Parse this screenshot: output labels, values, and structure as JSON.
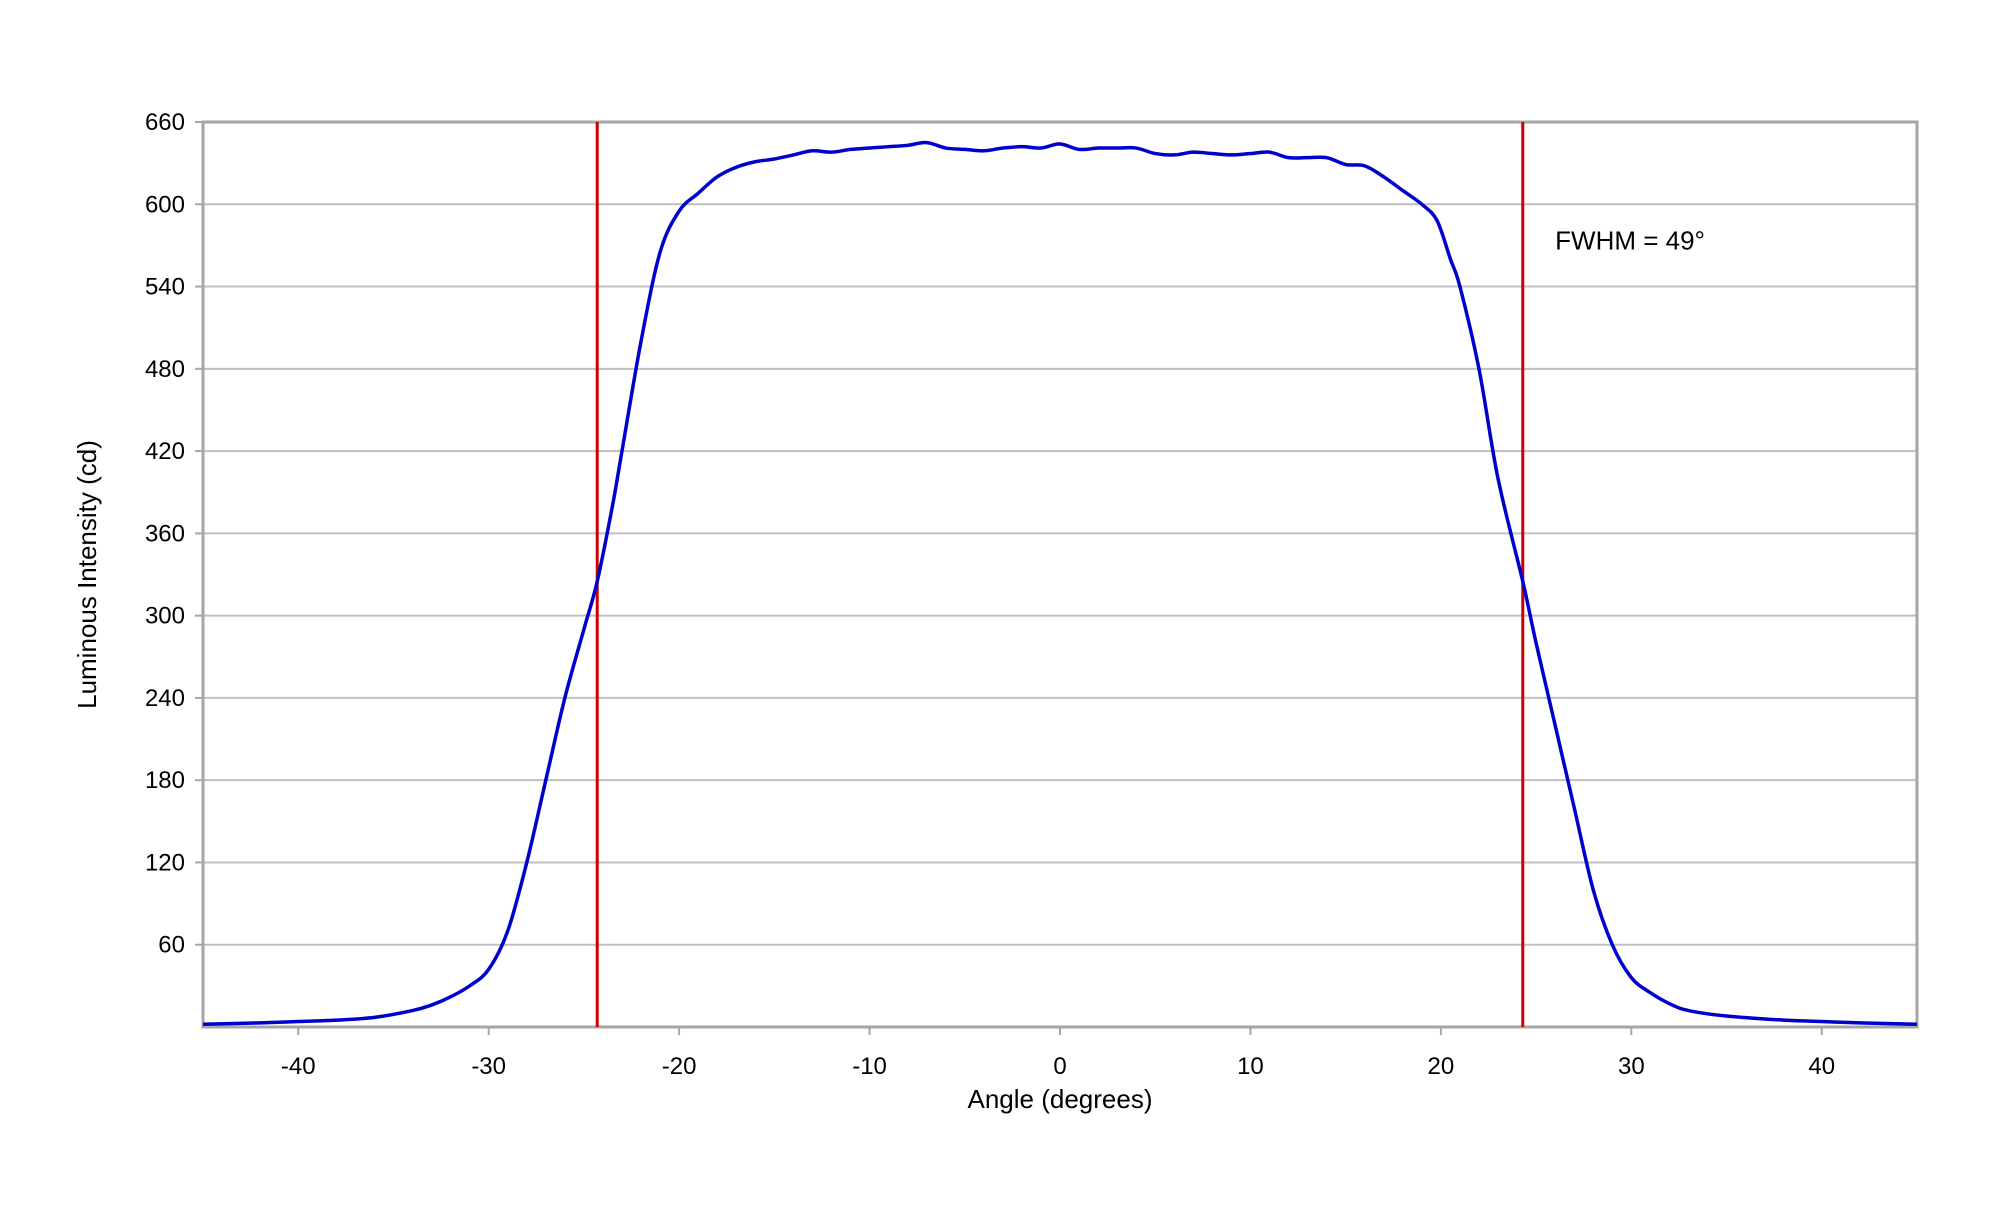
{
  "chart_data": {
    "type": "line",
    "title": "",
    "xlabel": "Angle (degrees)",
    "ylabel": "Luminous Intensity (cd)",
    "xlim": [
      -45,
      45
    ],
    "ylim": [
      0,
      660
    ],
    "xticks": [
      -40,
      -30,
      -20,
      -10,
      0,
      10,
      20,
      30,
      40
    ],
    "yticks": [
      60,
      120,
      180,
      240,
      300,
      360,
      420,
      480,
      540,
      600,
      660
    ],
    "grid": "horizontal",
    "legend": "none",
    "series": [
      {
        "color": "#0000cc",
        "points": [
          [
            -45,
            2
          ],
          [
            -42,
            3
          ],
          [
            -40,
            4
          ],
          [
            -38,
            5
          ],
          [
            -36,
            7
          ],
          [
            -34,
            12
          ],
          [
            -33,
            16
          ],
          [
            -32,
            22
          ],
          [
            -31,
            30
          ],
          [
            -30,
            42
          ],
          [
            -29,
            70
          ],
          [
            -28,
            120
          ],
          [
            -27,
            180
          ],
          [
            -26,
            240
          ],
          [
            -25,
            290
          ],
          [
            -24.3,
            325
          ],
          [
            -23.5,
            380
          ],
          [
            -23,
            420
          ],
          [
            -22,
            500
          ],
          [
            -21,
            565
          ],
          [
            -20,
            595
          ],
          [
            -19,
            608
          ],
          [
            -18,
            620
          ],
          [
            -17,
            627
          ],
          [
            -16,
            631
          ],
          [
            -15,
            633
          ],
          [
            -14,
            636
          ],
          [
            -13,
            639
          ],
          [
            -12,
            638
          ],
          [
            -11,
            640
          ],
          [
            -10,
            641
          ],
          [
            -9,
            642
          ],
          [
            -8,
            643
          ],
          [
            -7,
            645
          ],
          [
            -6,
            641
          ],
          [
            -5,
            640
          ],
          [
            -4,
            639
          ],
          [
            -3,
            641
          ],
          [
            -2,
            642
          ],
          [
            -1,
            641
          ],
          [
            0,
            644
          ],
          [
            1,
            640
          ],
          [
            2,
            641
          ],
          [
            3,
            641
          ],
          [
            4,
            641
          ],
          [
            5,
            637
          ],
          [
            6,
            636
          ],
          [
            7,
            638
          ],
          [
            8,
            637
          ],
          [
            9,
            636
          ],
          [
            10,
            637
          ],
          [
            11,
            638
          ],
          [
            12,
            634
          ],
          [
            13,
            634
          ],
          [
            14,
            634
          ],
          [
            15,
            629
          ],
          [
            16,
            628
          ],
          [
            17,
            620
          ],
          [
            18,
            610
          ],
          [
            19,
            600
          ],
          [
            19.8,
            588
          ],
          [
            20.5,
            560
          ],
          [
            21,
            540
          ],
          [
            22,
            480
          ],
          [
            23,
            400
          ],
          [
            24.3,
            325
          ],
          [
            25,
            280
          ],
          [
            26,
            220
          ],
          [
            27,
            160
          ],
          [
            28,
            100
          ],
          [
            29,
            60
          ],
          [
            30,
            36
          ],
          [
            31,
            25
          ],
          [
            32,
            17
          ],
          [
            33,
            12
          ],
          [
            35,
            8
          ],
          [
            38,
            5
          ],
          [
            40,
            4
          ],
          [
            42,
            3
          ],
          [
            45,
            2
          ]
        ]
      }
    ],
    "reference_lines": [
      {
        "axis": "x",
        "value": -24.3,
        "color": "#cc0000"
      },
      {
        "axis": "x",
        "value": 24.3,
        "color": "#cc0000"
      }
    ],
    "annotations": [
      {
        "text": "FWHM = 49°",
        "x": 26,
        "y": 567
      }
    ]
  }
}
